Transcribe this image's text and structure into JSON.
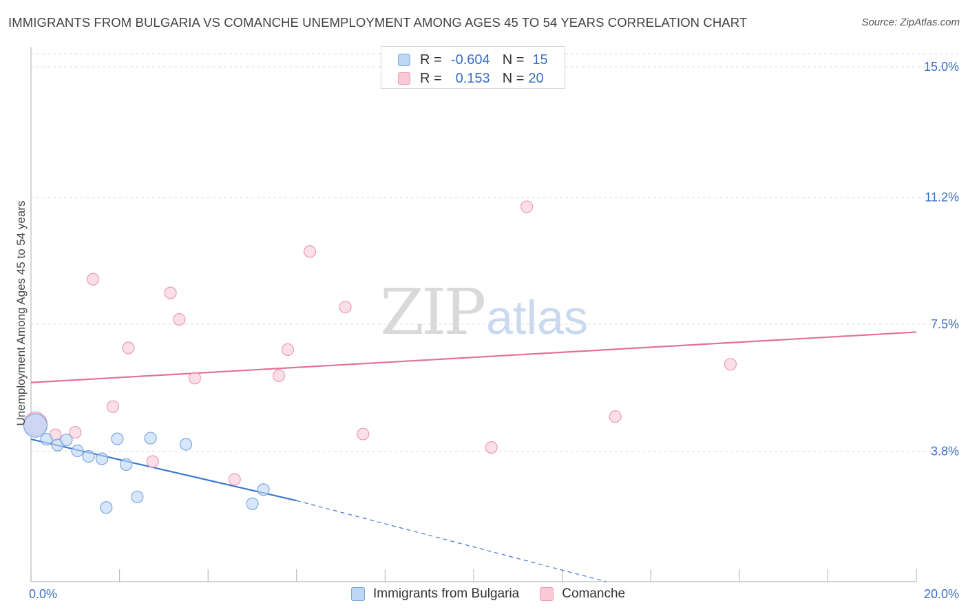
{
  "title": "IMMIGRANTS FROM BULGARIA VS COMANCHE UNEMPLOYMENT AMONG AGES 45 TO 54 YEARS CORRELATION CHART",
  "source": "Source: ZipAtlas.com",
  "watermark": {
    "zip": "ZIP",
    "atlas": "atlas"
  },
  "legend_top": {
    "rows": [
      {
        "r_label": "R =",
        "r_value": "-0.604",
        "n_label": "N =",
        "n_value": "15"
      },
      {
        "r_label": "R =",
        "r_value": "0.153",
        "n_label": "N =",
        "n_value": "20"
      }
    ]
  },
  "legend_bottom": {
    "items": [
      {
        "label": "Immigrants from Bulgaria"
      },
      {
        "label": "Comanche"
      }
    ]
  },
  "colors": {
    "bulgaria_fill": "#bdd7f5",
    "bulgaria_stroke": "#7aa6de",
    "bulgaria_line": "#3a78d0",
    "comanche_fill": "#f9c9d8",
    "comanche_stroke": "#eb9ab5",
    "comanche_line": "#e4709a",
    "axis_label": "#3a6fc4",
    "grid": "#dddddd"
  },
  "chart_data": {
    "type": "scatter",
    "title": "IMMIGRANTS FROM BULGARIA VS COMANCHE UNEMPLOYMENT AMONG AGES 45 TO 54 YEARS CORRELATION CHART",
    "xlabel": "",
    "ylabel": "Unemployment Among Ages 45 to 54 years",
    "xlim": [
      0,
      20
    ],
    "ylim": [
      0,
      15.3
    ],
    "x_tick_labels": [
      {
        "value": 0,
        "label": "0.0%"
      },
      {
        "value": 20,
        "label": "20.0%"
      }
    ],
    "y_tick_labels": [
      {
        "value": 3.8,
        "label": "3.8%"
      },
      {
        "value": 7.5,
        "label": "7.5%"
      },
      {
        "value": 11.2,
        "label": "11.2%"
      },
      {
        "value": 15.0,
        "label": "15.0%"
      }
    ],
    "series": [
      {
        "name": "Immigrants from Bulgaria",
        "r": -0.604,
        "n": 15,
        "points": [
          {
            "x": 0.1,
            "y": 4.55,
            "size": "large"
          },
          {
            "x": 0.35,
            "y": 4.15
          },
          {
            "x": 0.6,
            "y": 3.98
          },
          {
            "x": 0.8,
            "y": 4.13
          },
          {
            "x": 1.05,
            "y": 3.81
          },
          {
            "x": 1.3,
            "y": 3.65
          },
          {
            "x": 1.6,
            "y": 3.58
          },
          {
            "x": 1.7,
            "y": 2.16
          },
          {
            "x": 1.95,
            "y": 4.16
          },
          {
            "x": 2.15,
            "y": 3.41
          },
          {
            "x": 2.4,
            "y": 2.47
          },
          {
            "x": 2.7,
            "y": 4.18
          },
          {
            "x": 3.5,
            "y": 4.0
          },
          {
            "x": 5.0,
            "y": 2.27
          },
          {
            "x": 5.25,
            "y": 2.68
          }
        ],
        "trend": {
          "x0": 0,
          "y0": 4.15,
          "x1": 6.0,
          "y1": 2.36,
          "dash_to_x": 13.0,
          "dash_to_y": 0.0
        }
      },
      {
        "name": "Comanche",
        "r": 0.153,
        "n": 20,
        "points": [
          {
            "x": 0.1,
            "y": 4.6,
            "size": "large"
          },
          {
            "x": 0.55,
            "y": 4.28
          },
          {
            "x": 1.0,
            "y": 4.35
          },
          {
            "x": 1.4,
            "y": 8.81
          },
          {
            "x": 1.85,
            "y": 5.1
          },
          {
            "x": 2.2,
            "y": 6.81
          },
          {
            "x": 2.75,
            "y": 3.5
          },
          {
            "x": 3.15,
            "y": 8.41
          },
          {
            "x": 3.35,
            "y": 7.64
          },
          {
            "x": 3.7,
            "y": 5.93
          },
          {
            "x": 4.6,
            "y": 2.98
          },
          {
            "x": 5.6,
            "y": 6.0
          },
          {
            "x": 5.8,
            "y": 6.76
          },
          {
            "x": 6.3,
            "y": 9.62
          },
          {
            "x": 7.1,
            "y": 8.0
          },
          {
            "x": 7.5,
            "y": 4.3
          },
          {
            "x": 10.4,
            "y": 3.91
          },
          {
            "x": 11.2,
            "y": 10.92
          },
          {
            "x": 13.2,
            "y": 4.81
          },
          {
            "x": 15.8,
            "y": 6.33
          }
        ],
        "trend": {
          "x0": 0,
          "y0": 5.8,
          "x1": 20,
          "y1": 7.27
        }
      }
    ]
  }
}
